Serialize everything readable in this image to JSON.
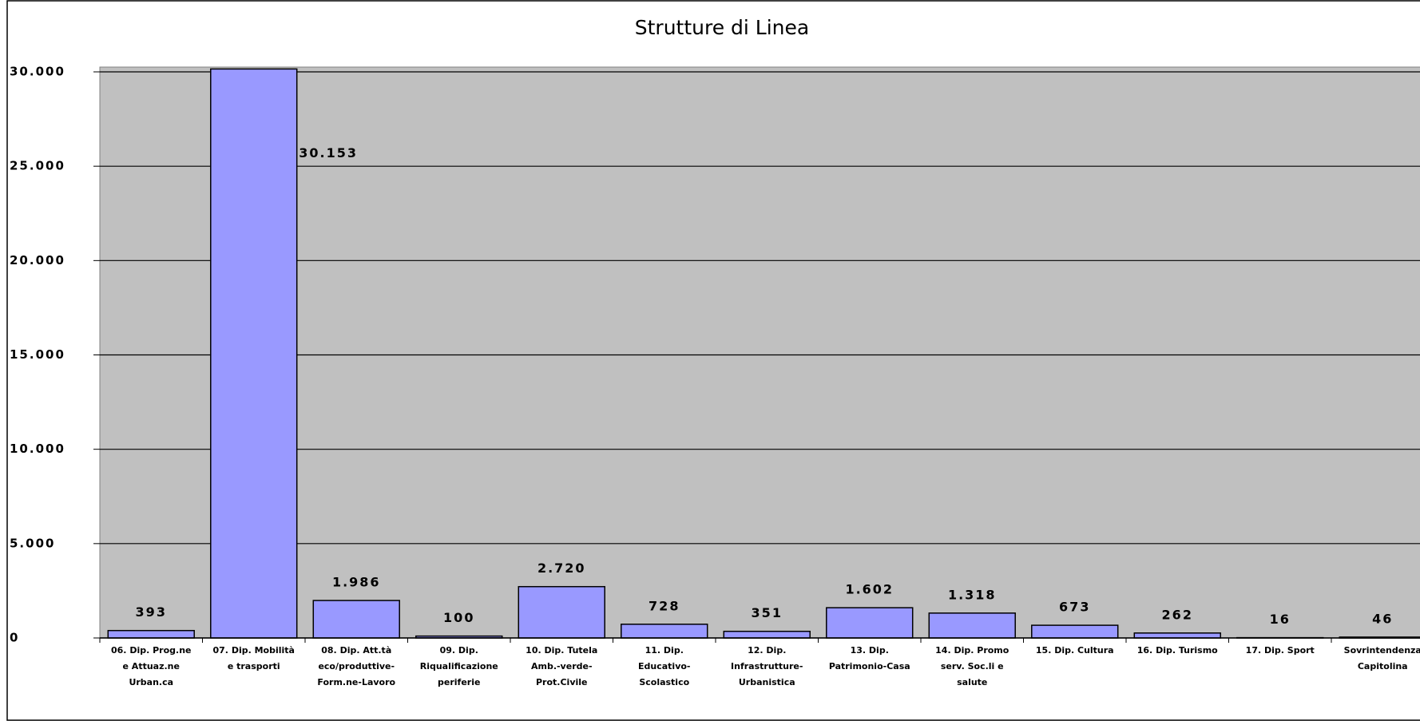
{
  "chart_data": {
    "type": "bar",
    "title": "Strutture di Linea",
    "categories": [
      "06. Dip. Prog.ne\ne Attuaz.ne\nUrban.ca",
      "07. Dip. Mobilità\ne trasporti",
      "08. Dip. Att.tà\neco/produttive-\nForm.ne-Lavoro",
      "09. Dip.\nRiqualificazione\nperiferie",
      "10. Dip. Tutela\nAmb.-verde-\nProt.Civile",
      "11. Dip.\nEducativo-\nScolastico",
      "12. Dip.\nInfrastrutture-\nUrbanistica",
      "13. Dip.\nPatrimonio-Casa",
      "14. Dip. Promo\nserv. Soc.li e\nsalute",
      "15. Dip. Cultura",
      "16. Dip. Turismo",
      "17. Dip. Sport",
      "Sovrintendenza\nCapitolina"
    ],
    "values": [
      393,
      30153,
      1986,
      100,
      2720,
      728,
      351,
      1602,
      1318,
      673,
      262,
      16,
      46
    ],
    "value_labels": [
      "393",
      "30.153",
      "1.986",
      "100",
      "2.720",
      "728",
      "351",
      "1.602",
      "1.318",
      "673",
      "262",
      "16",
      "46"
    ],
    "color": "#9999ff",
    "ylim": [
      0,
      30000
    ],
    "yticks": [
      0,
      {
        "value": 5000,
        "label": "5.000"
      },
      {
        "value": 10000,
        "label": "10.000"
      },
      {
        "value": 15000,
        "label": "15.000"
      },
      {
        "value": 20000,
        "label": "20.000"
      },
      {
        "value": 25000,
        "label": "25.000"
      },
      {
        "value": 30000,
        "label": "30.000"
      }
    ],
    "grid": true
  }
}
